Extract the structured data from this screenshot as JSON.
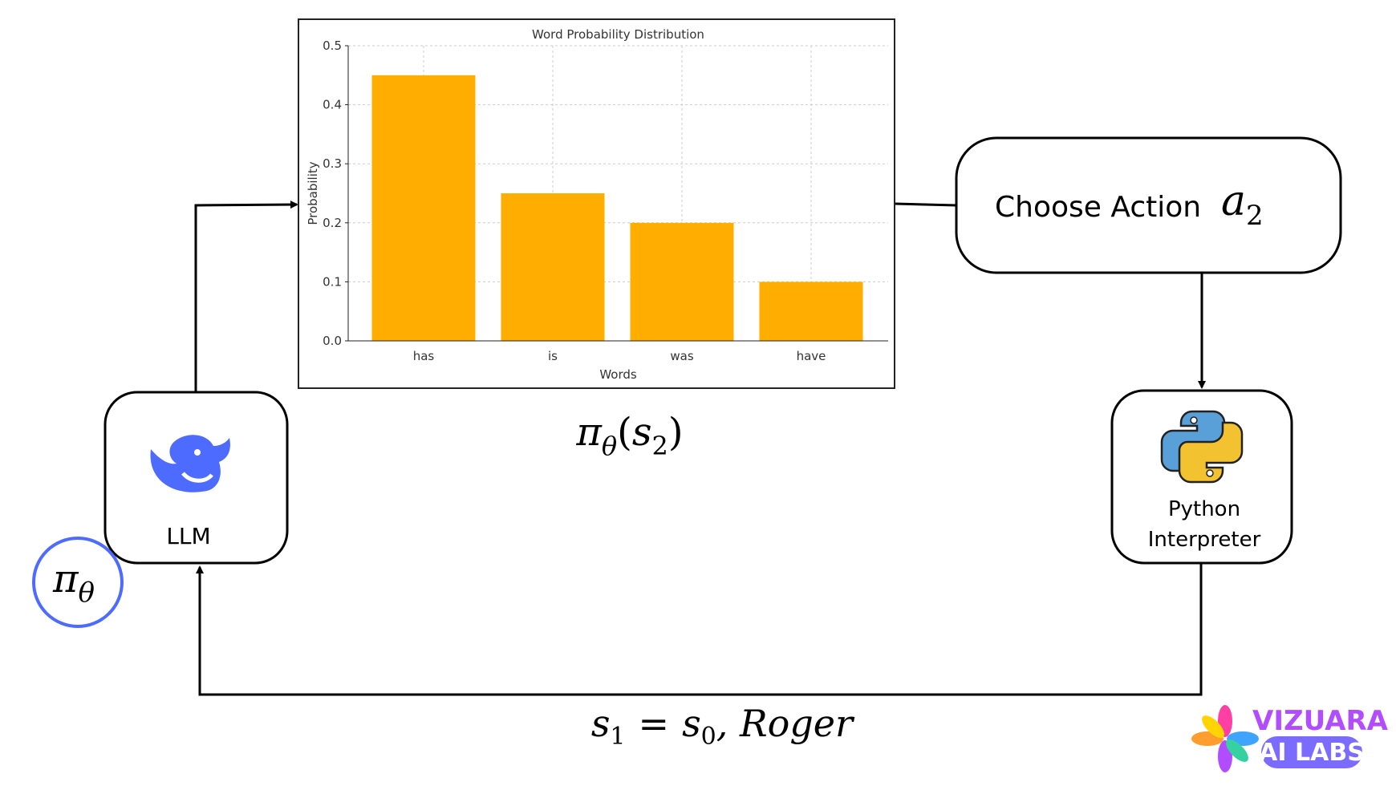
{
  "chart_data": {
    "type": "bar",
    "title": "Word Probability Distribution",
    "x_label": "Words",
    "y_label": "Probability",
    "categories": [
      "has",
      "is",
      "was",
      "have"
    ],
    "values": [
      0.45,
      0.25,
      0.2,
      0.1
    ],
    "color": "#ffae00",
    "ylim": [
      0,
      0.5
    ],
    "yticks": [
      {
        "value": 0,
        "label": "0.0"
      },
      0.1,
      0.2,
      0.3,
      0.4,
      0.5
    ],
    "grid": true
  },
  "policy_label": {
    "symbol": "π",
    "sub": "θ",
    "open": "(",
    "arg": "s",
    "arg_sub": "2",
    "close": ")"
  },
  "action_box": {
    "text": "Choose Action",
    "symbol": "a",
    "sub": "2"
  },
  "interpreter_box": {
    "line1": "Python",
    "line2": "Interpreter"
  },
  "llm_box": {
    "text": "LLM"
  },
  "policy_circle": {
    "symbol": "π",
    "sub": "θ"
  },
  "state_label": {
    "lhs": "s",
    "lhs_sub": "1",
    "eq": "=",
    "rhs": "s",
    "rhs_sub": "0",
    "rest": ", Roger"
  },
  "logo": {
    "line1": "VIZUARA",
    "line2": "AI LABS"
  }
}
